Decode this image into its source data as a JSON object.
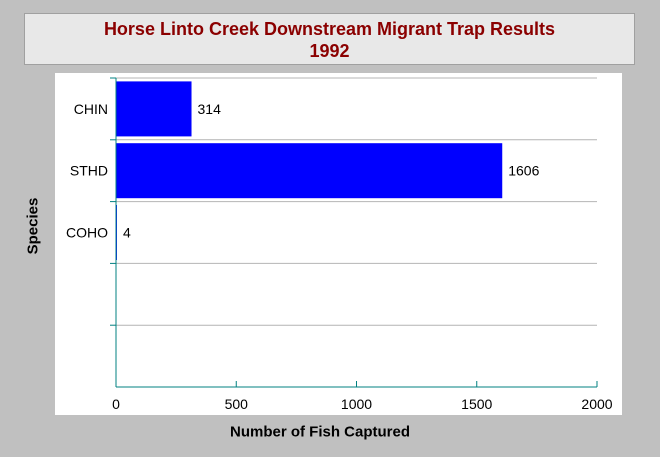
{
  "chart_data": {
    "type": "bar",
    "orientation": "horizontal",
    "title": "Horse Linto Creek Downstream Migrant Trap Results",
    "subtitle": "1992",
    "xlabel": "Number of Fish Captured",
    "ylabel": "Species",
    "categories": [
      "CHIN",
      "STHD",
      "COHO"
    ],
    "values": [
      314,
      1606,
      4
    ],
    "xlim": [
      0,
      2000
    ],
    "xticks": [
      0,
      500,
      1000,
      1500,
      2000
    ],
    "row_slots": 5,
    "grid": "horizontal",
    "bar_color": "#0000ff",
    "axis_color": "#008080",
    "title_color": "#8b0000"
  }
}
